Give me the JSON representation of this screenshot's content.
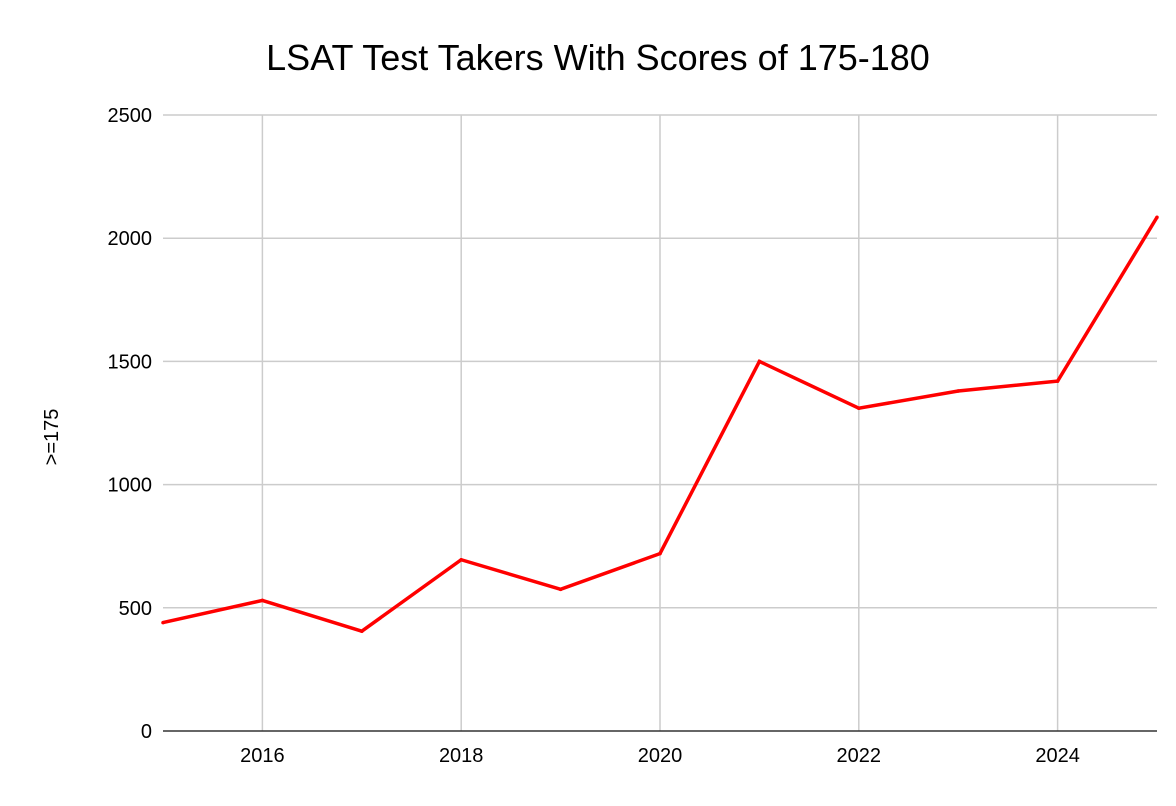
{
  "chart_data": {
    "type": "line",
    "title": "LSAT Test Takers With Scores of 175-180",
    "xlabel": "",
    "ylabel": ">=175",
    "x": [
      2015,
      2016,
      2017,
      2018,
      2019,
      2020,
      2021,
      2022,
      2023,
      2024,
      2025
    ],
    "series": [
      {
        "values": [
          440,
          530,
          405,
          695,
          575,
          720,
          1500,
          1310,
          1380,
          1420,
          2085
        ],
        "color": "#ff0000"
      }
    ],
    "xlim": [
      2015,
      2025
    ],
    "ylim": [
      0,
      2500
    ],
    "x_ticks": [
      2016,
      2018,
      2020,
      2022,
      2024
    ],
    "y_ticks": [
      0,
      500,
      1000,
      1500,
      2000,
      2500
    ],
    "grid": true,
    "legend": "none",
    "colors": {
      "grid": "#cccccc",
      "axis": "#333333"
    }
  }
}
